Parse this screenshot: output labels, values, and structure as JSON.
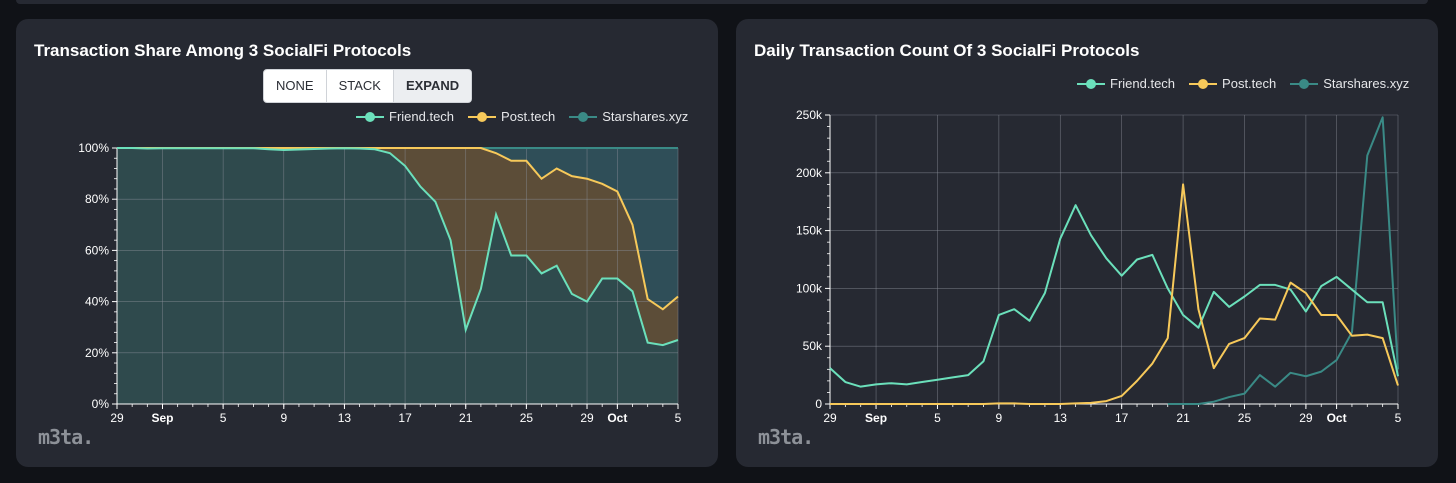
{
  "colors": {
    "friend": "#6be0bb",
    "post": "#f7c95a",
    "star": "#3a8a86"
  },
  "logo_text": "m3ta.",
  "chart_data": [
    {
      "type": "area",
      "title": "Transaction Share Among 3 SocialFi Protocols",
      "mode_buttons": [
        "NONE",
        "STACK",
        "EXPAND"
      ],
      "active_mode": "EXPAND",
      "legend": [
        "Friend.tech",
        "Post.tech",
        "Starshares.xyz"
      ],
      "legend_placement": "top-right",
      "grid": true,
      "xlim": [
        0,
        37
      ],
      "x_ticks": [
        {
          "x": 0,
          "label": "29",
          "bold": false
        },
        {
          "x": 3,
          "label": "Sep",
          "bold": true
        },
        {
          "x": 7,
          "label": "5",
          "bold": false
        },
        {
          "x": 11,
          "label": "9",
          "bold": false
        },
        {
          "x": 15,
          "label": "13",
          "bold": false
        },
        {
          "x": 19,
          "label": "17",
          "bold": false
        },
        {
          "x": 23,
          "label": "21",
          "bold": false
        },
        {
          "x": 27,
          "label": "25",
          "bold": false
        },
        {
          "x": 31,
          "label": "29",
          "bold": false
        },
        {
          "x": 33,
          "label": "Oct",
          "bold": true
        },
        {
          "x": 37,
          "label": "5",
          "bold": false
        }
      ],
      "ylim": [
        0,
        100
      ],
      "y_ticks": [
        {
          "v": 0,
          "label": "0%"
        },
        {
          "v": 20,
          "label": "20%"
        },
        {
          "v": 40,
          "label": "40%"
        },
        {
          "v": 60,
          "label": "60%"
        },
        {
          "v": 80,
          "label": "80%"
        },
        {
          "v": 100,
          "label": "100%"
        }
      ],
      "series": [
        {
          "name": "Friend.tech",
          "x": [
            0,
            1,
            2,
            3,
            4,
            5,
            6,
            7,
            8,
            9,
            10,
            11,
            12,
            13,
            14,
            15,
            16,
            17,
            18,
            19,
            20,
            21,
            22,
            23,
            24,
            25,
            26,
            27,
            28,
            29,
            30,
            31,
            32,
            33,
            34,
            35,
            36,
            37
          ],
          "values": [
            100,
            100,
            99.8,
            99.9,
            99.9,
            99.9,
            99.9,
            99.9,
            99.9,
            99.9,
            99.5,
            99.2,
            99.4,
            99.6,
            99.8,
            99.9,
            99.8,
            99.5,
            98,
            93,
            85,
            79,
            64,
            29,
            45,
            74,
            58,
            58,
            51,
            54,
            43,
            40,
            49,
            49,
            44,
            24,
            23,
            25
          ]
        },
        {
          "name": "Post.tech",
          "x": [
            0,
            1,
            2,
            3,
            4,
            5,
            6,
            7,
            8,
            9,
            10,
            11,
            12,
            13,
            14,
            15,
            16,
            17,
            18,
            19,
            20,
            21,
            22,
            23,
            24,
            25,
            26,
            27,
            28,
            29,
            30,
            31,
            32,
            33,
            34,
            35,
            36,
            37
          ],
          "values": [
            100,
            100,
            100,
            100,
            100,
            100,
            100,
            100,
            100,
            100,
            100,
            100,
            100,
            100,
            100,
            100,
            100,
            100,
            100,
            100,
            100,
            100,
            100,
            100,
            100,
            98,
            95,
            95,
            88,
            92,
            89,
            88,
            86,
            83,
            70,
            41,
            37,
            42
          ]
        },
        {
          "name": "Starshares.xyz",
          "x": [
            0,
            37
          ],
          "values": [
            100,
            100
          ]
        }
      ]
    },
    {
      "type": "line",
      "title": "Daily Transaction Count Of 3 SocialFi Protocols",
      "legend": [
        "Friend.tech",
        "Post.tech",
        "Starshares.xyz"
      ],
      "legend_placement": "top-right",
      "grid": true,
      "xlim": [
        0,
        37
      ],
      "x_ticks": [
        {
          "x": 0,
          "label": "29",
          "bold": false
        },
        {
          "x": 3,
          "label": "Sep",
          "bold": true
        },
        {
          "x": 7,
          "label": "5",
          "bold": false
        },
        {
          "x": 11,
          "label": "9",
          "bold": false
        },
        {
          "x": 15,
          "label": "13",
          "bold": false
        },
        {
          "x": 19,
          "label": "17",
          "bold": false
        },
        {
          "x": 23,
          "label": "21",
          "bold": false
        },
        {
          "x": 27,
          "label": "25",
          "bold": false
        },
        {
          "x": 31,
          "label": "29",
          "bold": false
        },
        {
          "x": 33,
          "label": "Oct",
          "bold": true
        },
        {
          "x": 37,
          "label": "5",
          "bold": false
        }
      ],
      "ylim": [
        0,
        250000
      ],
      "y_ticks": [
        {
          "v": 0,
          "label": "0"
        },
        {
          "v": 50000,
          "label": "50k"
        },
        {
          "v": 100000,
          "label": "100k"
        },
        {
          "v": 150000,
          "label": "150k"
        },
        {
          "v": 200000,
          "label": "200k"
        },
        {
          "v": 250000,
          "label": "250k"
        }
      ],
      "series": [
        {
          "name": "Friend.tech",
          "x": [
            0,
            1,
            2,
            3,
            4,
            5,
            6,
            7,
            8,
            9,
            10,
            11,
            12,
            13,
            14,
            15,
            16,
            17,
            18,
            19,
            20,
            21,
            22,
            23,
            24,
            25,
            26,
            27,
            28,
            29,
            30,
            31,
            32,
            33,
            34,
            35,
            36,
            37
          ],
          "values": [
            31000,
            19000,
            15000,
            17000,
            18000,
            17000,
            19000,
            21000,
            23000,
            25000,
            37000,
            77000,
            82000,
            72000,
            96000,
            143000,
            172000,
            146000,
            126000,
            111000,
            125000,
            129000,
            100000,
            77000,
            66000,
            97000,
            84000,
            93000,
            103000,
            103000,
            99000,
            80000,
            102000,
            110000,
            99000,
            88000,
            88000,
            24000
          ]
        },
        {
          "name": "Post.tech",
          "x": [
            0,
            1,
            2,
            3,
            4,
            5,
            6,
            7,
            8,
            9,
            10,
            11,
            12,
            13,
            14,
            15,
            16,
            17,
            18,
            19,
            20,
            21,
            22,
            23,
            24,
            25,
            26,
            27,
            28,
            29,
            30,
            31,
            32,
            33,
            34,
            35,
            36,
            37
          ],
          "values": [
            0,
            0,
            0,
            0,
            0,
            0,
            0,
            0,
            0,
            0,
            0,
            500,
            500,
            0,
            0,
            0,
            500,
            1000,
            2500,
            7000,
            20000,
            35000,
            57000,
            190000,
            82000,
            31000,
            52000,
            57000,
            74000,
            73000,
            105000,
            96000,
            77000,
            77000,
            59000,
            60000,
            57000,
            16000
          ]
        },
        {
          "name": "Starshares.xyz",
          "x": [
            22,
            23,
            24,
            25,
            26,
            27,
            28,
            29,
            30,
            31,
            32,
            33,
            34,
            35,
            36,
            37
          ],
          "values": [
            0,
            0,
            0,
            2000,
            6000,
            9000,
            25000,
            15000,
            27000,
            24000,
            28000,
            38000,
            62000,
            215000,
            248000,
            30000
          ]
        }
      ]
    }
  ]
}
